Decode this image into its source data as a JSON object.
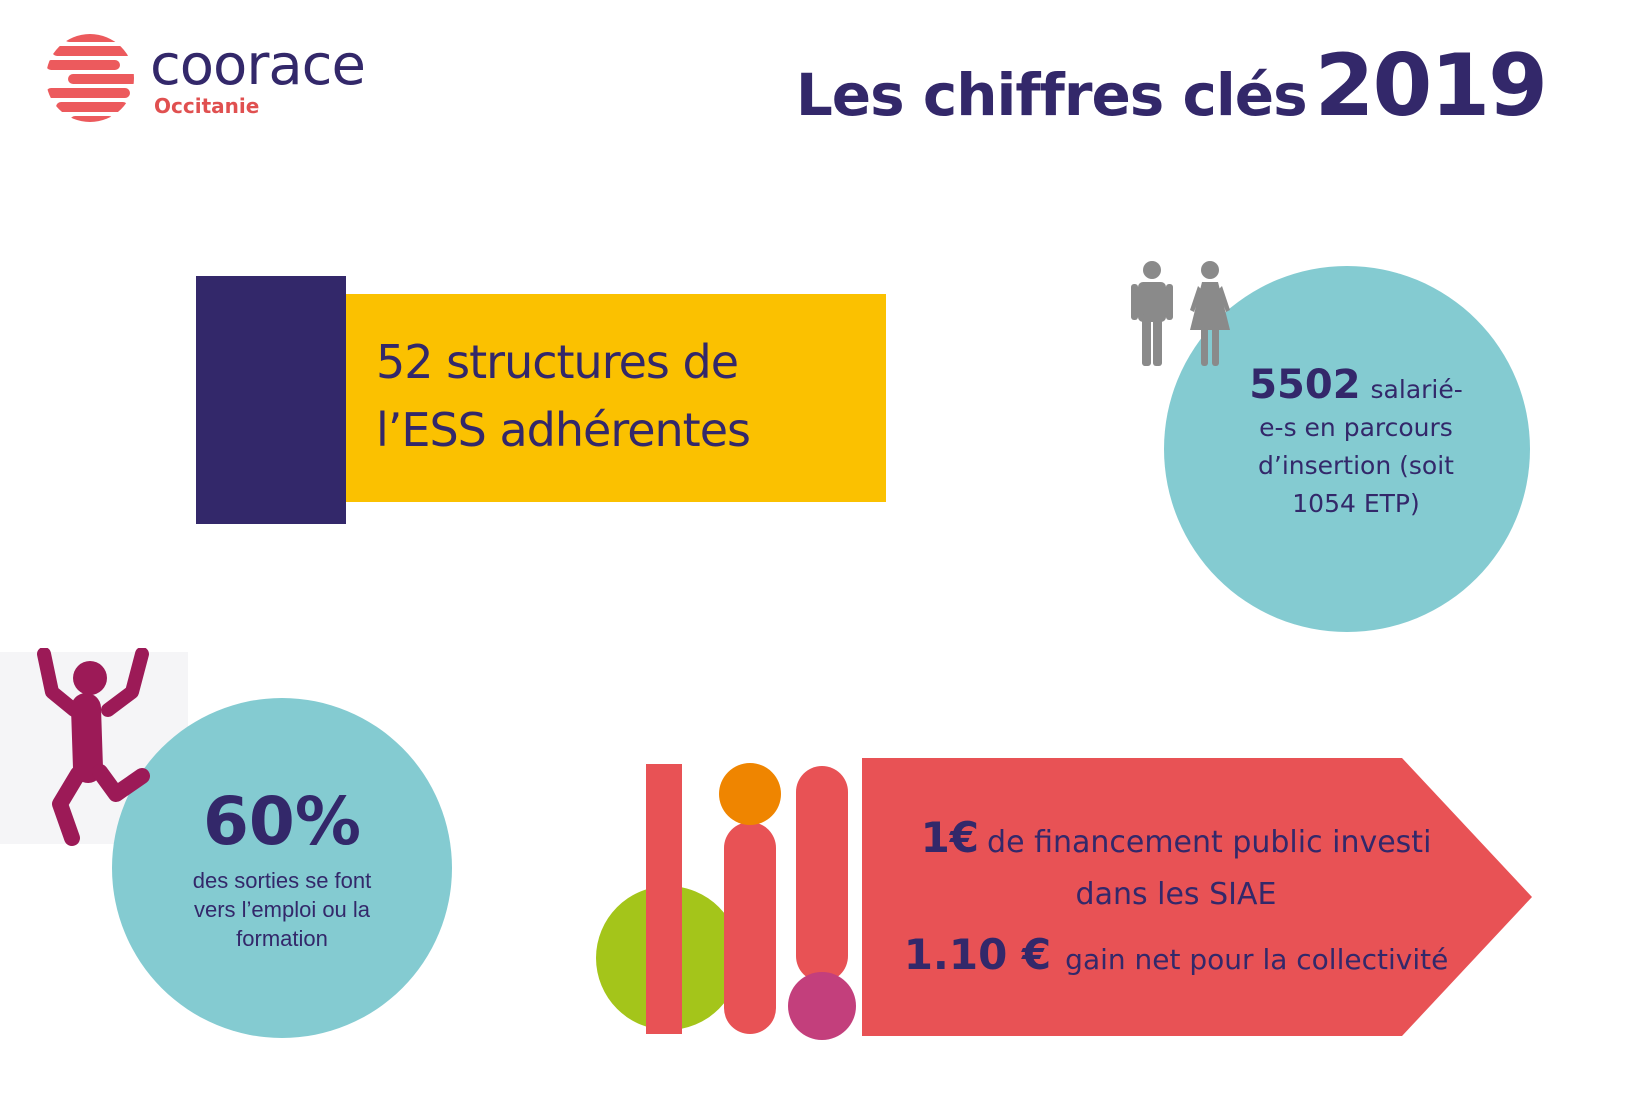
{
  "logo": {
    "name": "coorace",
    "region": "Occitanie",
    "colors": {
      "name": "#33286a",
      "accent": "#e05050"
    }
  },
  "title": {
    "text": "Les chiffres clés",
    "year": "2019"
  },
  "structures": {
    "line1": "52 structures de",
    "line2": "l’ESS adhérentes",
    "colors": {
      "bar": "#33286a",
      "box": "#fbc100"
    }
  },
  "salaries": {
    "number": "5502",
    "text_lines": [
      "salarié-",
      "e-s  en parcours",
      "d’insertion (soit",
      "1054 ETP)"
    ],
    "icon": "man-woman-icon",
    "colors": {
      "circle": "#84cbd1",
      "icon": "#8a8a8a"
    }
  },
  "sorties": {
    "percent": "60%",
    "label": "des sorties se font vers l’emploi ou la formation",
    "icon": "jumping-person-icon",
    "colors": {
      "circle": "#84cbd1",
      "icon": "#9c1a57"
    }
  },
  "financement": {
    "amount1": "1€",
    "text1": "de financement public investi",
    "text2": "dans les SIAE",
    "amount2": "1.10 €",
    "text3": "gain net pour la collectivité",
    "colors": {
      "arrow": "#e85255",
      "lime": "#a4c51a",
      "orange": "#ef8500",
      "magenta": "#c33f7c"
    }
  }
}
